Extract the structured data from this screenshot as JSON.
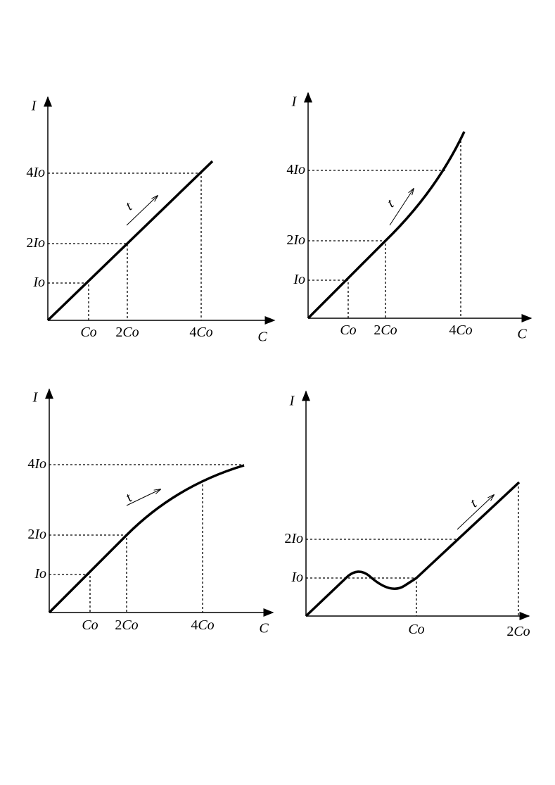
{
  "panels": [
    {
      "axis_y": "I",
      "axis_x": "C",
      "arrow_label": "t",
      "y_labels": [
        {
          "num": "4",
          "sym": "Io"
        },
        {
          "num": "2",
          "sym": "Io"
        },
        {
          "sym": "Io"
        }
      ],
      "x_labels": [
        {
          "sym": "Co"
        },
        {
          "num": "2",
          "sym": "Co"
        },
        {
          "num": "4",
          "sym": "Co"
        }
      ]
    },
    {
      "axis_y": "I",
      "axis_x": "C",
      "arrow_label": "t",
      "y_labels": [
        {
          "num": "4",
          "sym": "Io"
        },
        {
          "num": "2",
          "sym": "Io"
        },
        {
          "sym": "Io"
        }
      ],
      "x_labels": [
        {
          "sym": "Co"
        },
        {
          "num": "2",
          "sym": "Co"
        },
        {
          "num": "4",
          "sym": "Co"
        }
      ]
    },
    {
      "axis_y": "I",
      "axis_x": "C",
      "arrow_label": "t",
      "y_labels": [
        {
          "num": "4",
          "sym": "Io"
        },
        {
          "num": "2",
          "sym": "Io"
        },
        {
          "sym": "Io"
        }
      ],
      "x_labels": [
        {
          "sym": "Co"
        },
        {
          "num": "2",
          "sym": "Co"
        },
        {
          "num": "4",
          "sym": "Co"
        }
      ]
    },
    {
      "axis_y": "I",
      "arrow_label": "t",
      "y_labels": [
        {
          "num": "2",
          "sym": "Io"
        },
        {
          "sym": "Io"
        }
      ],
      "x_labels": [
        {
          "sym": "Co"
        },
        {
          "num": "2",
          "sym": "Co"
        }
      ]
    }
  ]
}
